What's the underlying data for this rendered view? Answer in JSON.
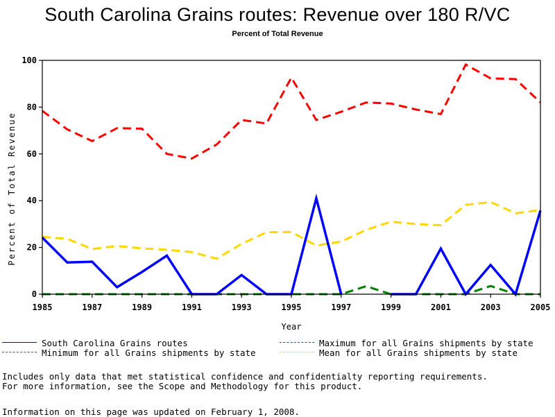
{
  "header": {
    "title": "South Carolina Grains routes: Revenue over 180 R/VC",
    "subtitle": "Percent of Total Revenue"
  },
  "chart_data": {
    "type": "line",
    "title": "South Carolina Grains routes: Revenue over 180 R/VC",
    "subtitle": "Percent of Total Revenue",
    "xlabel": "Year",
    "ylabel": "Percent of Total Revenue",
    "xlim": [
      1985,
      2005
    ],
    "ylim": [
      0,
      100
    ],
    "x_ticks": [
      "1985",
      "1987",
      "1989",
      "1991",
      "1993",
      "1995",
      "1997",
      "1999",
      "2001",
      "2003",
      "2005"
    ],
    "y_ticks": [
      "0",
      "20",
      "40",
      "60",
      "80",
      "100"
    ],
    "grid": false,
    "legend_position": "bottom",
    "x": [
      1985,
      1986,
      1987,
      1988,
      1989,
      1990,
      1991,
      1992,
      1993,
      1994,
      1995,
      1996,
      1997,
      1998,
      1999,
      2000,
      2001,
      2002,
      2003,
      2004,
      2005
    ],
    "series": [
      {
        "name": "South Carolina Grains routes",
        "color": "#0000ff",
        "style": "solid",
        "values": [
          24.2,
          13.6,
          13.9,
          3.0,
          9.5,
          16.5,
          0,
          0,
          8.2,
          0,
          0,
          41.0,
          0,
          null,
          0,
          0,
          19.5,
          0,
          12.5,
          0,
          35.8
        ]
      },
      {
        "name": "Maximum for all Grains shipments by state",
        "color": "#ff0000",
        "style": "dashed",
        "values": [
          78.4,
          70.5,
          65.5,
          71.0,
          70.8,
          60.0,
          58.0,
          64.0,
          74.5,
          73.0,
          92.6,
          74.5,
          78.0,
          82.0,
          81.5,
          79.0,
          77.0,
          98.2,
          92.3,
          92.0,
          82.0
        ]
      },
      {
        "name": "Minimum for all Grains shipments by state",
        "color": "#008000",
        "style": "dashed",
        "values": [
          0,
          0,
          0,
          0,
          0,
          0,
          0,
          0,
          0,
          0,
          0,
          0,
          0,
          3.4,
          0,
          0,
          0,
          0,
          3.5,
          0,
          0
        ]
      },
      {
        "name": "Mean for all Grains shipments by state",
        "color": "#ffd700",
        "style": "dashed",
        "values": [
          24.5,
          23.7,
          19.3,
          20.6,
          19.6,
          19.0,
          18.0,
          15.2,
          21.5,
          26.5,
          26.6,
          20.8,
          22.5,
          27.5,
          31.0,
          30.0,
          29.5,
          38.2,
          39.4,
          34.6,
          36.0
        ]
      }
    ]
  },
  "notes": {
    "line1": "Includes only data that met statistical confidence and confidentialty reporting requirements.",
    "line2": "For more information, see the Scope and Methodology for this product.",
    "updated": "Information on this page was updated on February 1, 2008."
  }
}
